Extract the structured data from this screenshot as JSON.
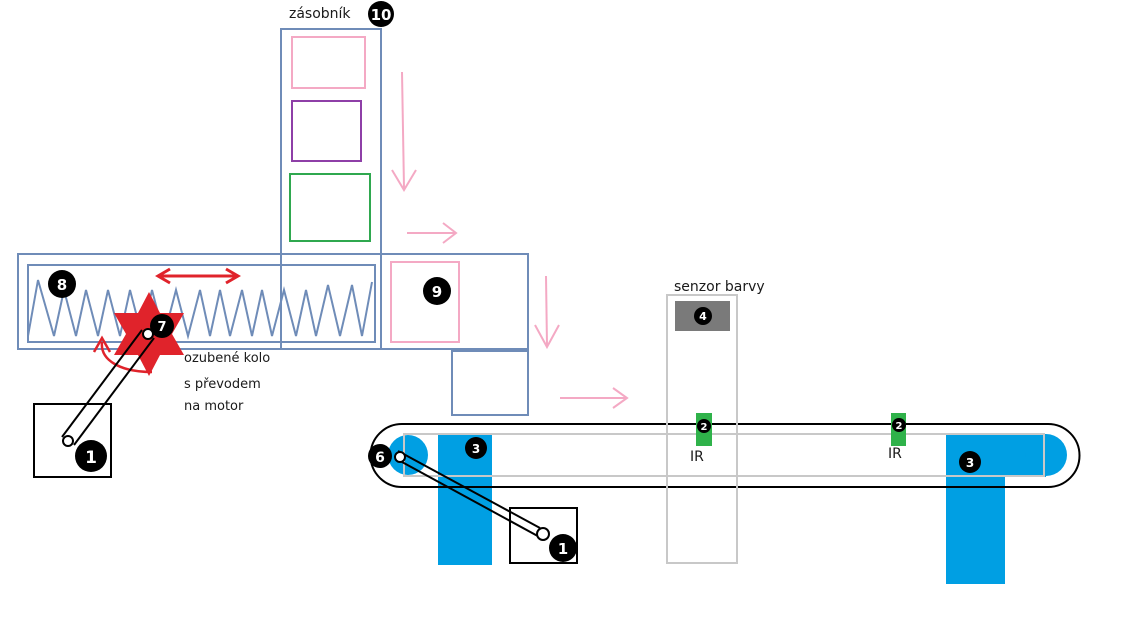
{
  "labels": {
    "hopper": "zásobník",
    "color_sensor": "senzor barvy",
    "gear": [
      "ozubené kolo",
      "s převodem",
      "na motor"
    ],
    "ir_left": "IR",
    "ir_right": "IR"
  },
  "badges": {
    "hopper": "10",
    "spring": "8",
    "gear": "7",
    "slot": "9",
    "motor_left": "1",
    "motor_belt": "1",
    "pulley": "6",
    "leg_left": "3",
    "leg_right": "3",
    "sensor": "4",
    "ir_left": "2",
    "ir_right": "2"
  },
  "colors": {
    "box_outline": "#6f8cb8",
    "pink": "#f4a9c4",
    "purple": "#8e3fa7",
    "green": "#2fa84f",
    "red": "#e0232b",
    "blue": "#009fe3",
    "gray": "#7a7a7a",
    "light_gray": "#c8c8c8",
    "ir_green": "#2fb24a",
    "black": "#000000"
  }
}
